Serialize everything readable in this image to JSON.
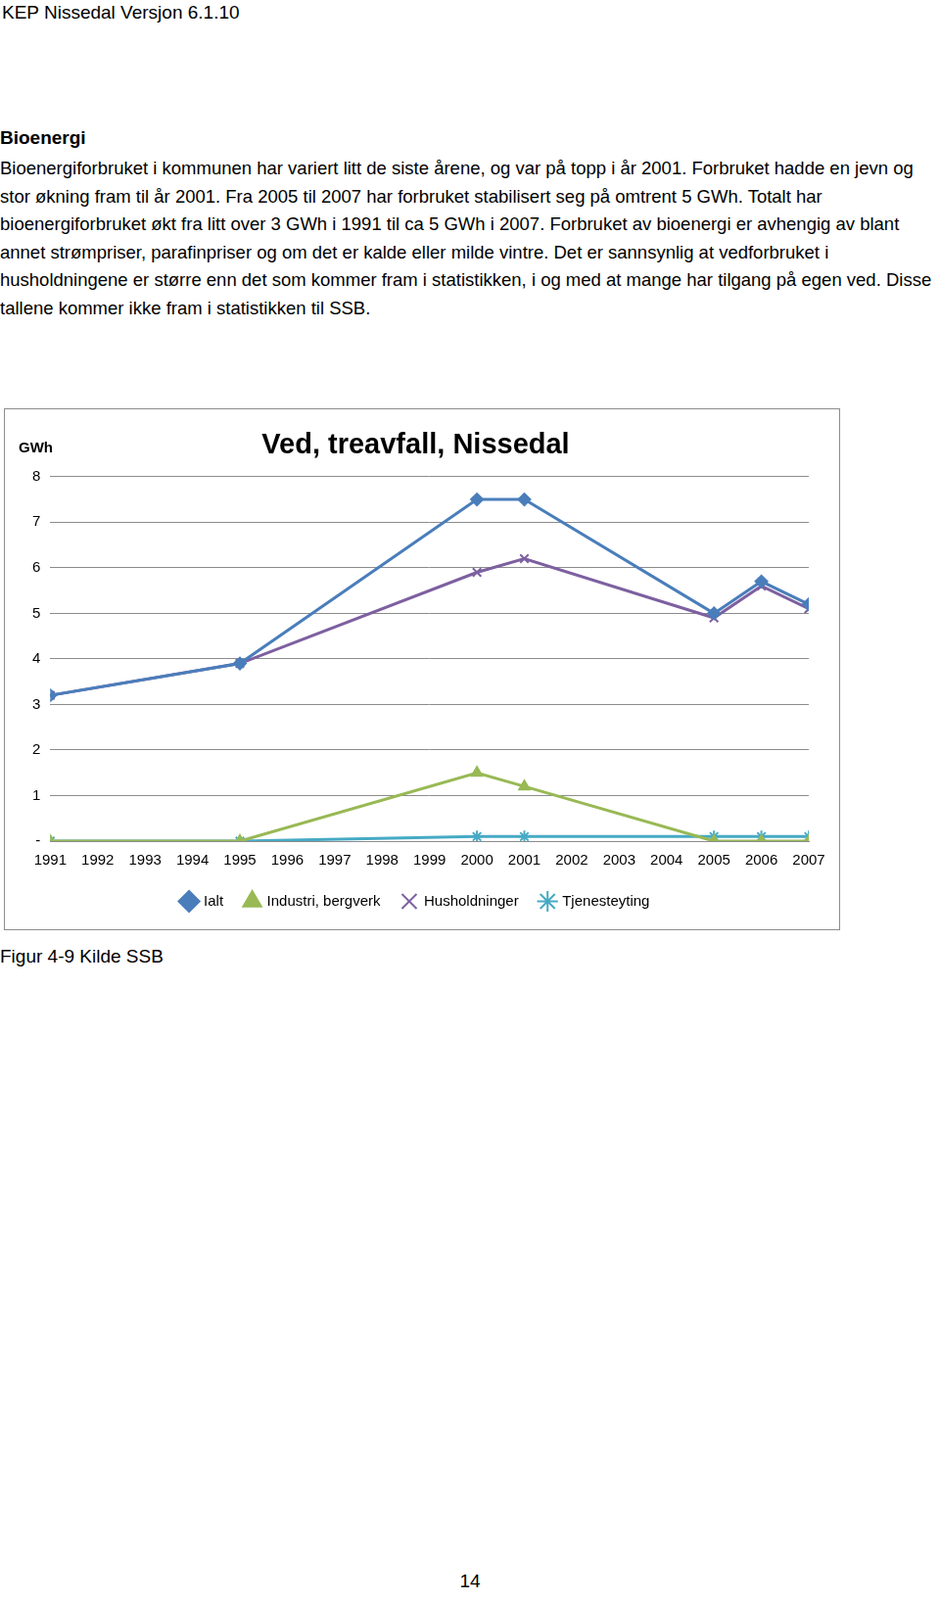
{
  "header": "KEP Nissedal Versjon 6.1.10",
  "heading": "Bioenergi",
  "paragraph": "Bioenergiforbruket i kommunen har variert litt de siste årene, og var på topp i år 2001. Forbruket hadde en jevn og stor økning fram til år 2001. Fra 2005 til 2007 har forbruket stabilisert seg på omtrent 5 GWh. Totalt har bioenergiforbruket økt fra litt over 3 GWh i 1991 til ca 5 GWh i 2007. Forbruket av bioenergi er avhengig av blant annet strømpriser, parafinpriser og om det er kalde eller milde vintre. Det er sannsynlig at vedforbruket i husholdningene er større enn det som kommer fram i statistikken, i og med at mange har tilgang på egen ved. Disse tallene kommer ikke fram i statistikken til SSB.",
  "chart_data": {
    "type": "line",
    "title": "Ved, treavfall, Nissedal",
    "y_label": "GWh",
    "x": [
      1991,
      1995,
      2000,
      2001,
      2005,
      2006,
      2007
    ],
    "xlim": [
      1991,
      2007
    ],
    "xticks": [
      1991,
      1992,
      1993,
      1994,
      1995,
      1996,
      1997,
      1998,
      1999,
      2000,
      2001,
      2002,
      2003,
      2004,
      2005,
      2006,
      2007
    ],
    "ylim": [
      0,
      8
    ],
    "yticks": [
      {
        "value": 0,
        "label": "-"
      },
      1,
      2,
      3,
      4,
      5,
      6,
      7,
      8
    ],
    "grid": true,
    "legend": "bottom",
    "series": [
      {
        "name": "Ialt",
        "color": "#4a7ebb",
        "marker": "diamond",
        "values": [
          3.2,
          3.9,
          7.5,
          7.5,
          5.0,
          5.7,
          5.2
        ]
      },
      {
        "name": "Industri, bergverk",
        "color": "#98b954",
        "marker": "triangle",
        "values": [
          0,
          0,
          1.5,
          1.2,
          0,
          0,
          0
        ]
      },
      {
        "name": "Husholdninger",
        "color": "#7d60a0",
        "marker": "x",
        "values": [
          3.2,
          3.9,
          5.9,
          6.2,
          4.9,
          5.6,
          5.1
        ]
      },
      {
        "name": "Tjenesteyting",
        "color": "#46aac5",
        "marker": "star",
        "values": [
          0,
          0,
          0.1,
          0.1,
          0.1,
          0.1,
          0.1
        ]
      }
    ]
  },
  "caption": "Figur 4-9 Kilde SSB",
  "page_number": "14"
}
